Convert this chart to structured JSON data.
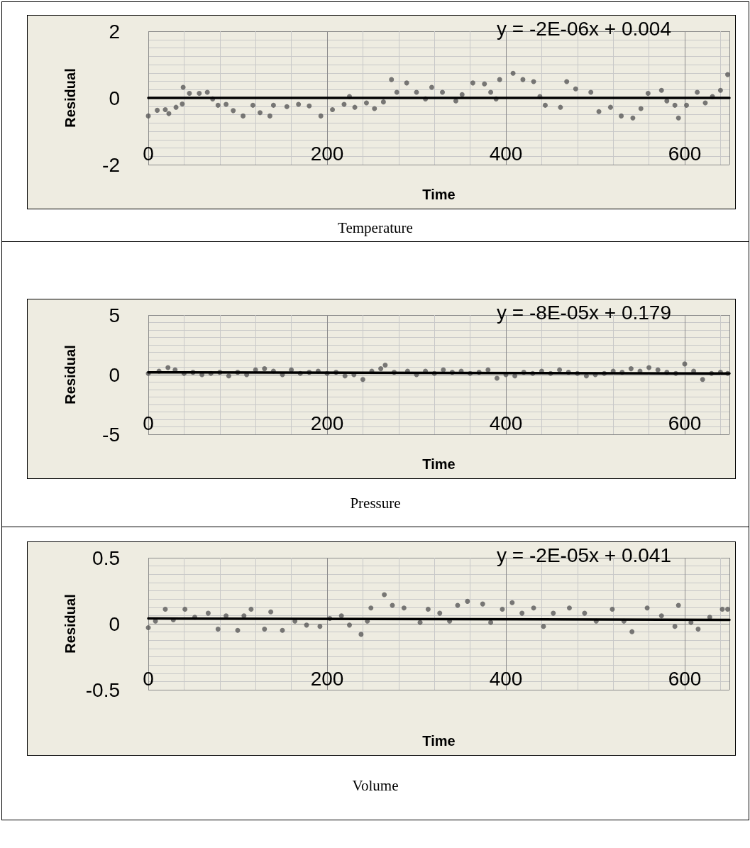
{
  "chart_data": [
    {
      "type": "scatter",
      "title": "Temperature",
      "xlabel": "Time",
      "ylabel": "Residual",
      "annotations": [
        "y = -2E-06x + 0.004"
      ],
      "xlim": [
        0,
        650
      ],
      "ylim": [
        -2,
        2
      ],
      "xticks": [
        0,
        200,
        400,
        600
      ],
      "yticks": [
        -2,
        0,
        2
      ],
      "grid": true,
      "marker": "circle",
      "series": [
        {
          "color": "#595959",
          "x": [
            0,
            10,
            19,
            23,
            31,
            38,
            39,
            46,
            57,
            66,
            72,
            78,
            87,
            95,
            106,
            117,
            125,
            136,
            140,
            155,
            168,
            180,
            193,
            206,
            219,
            225,
            231,
            244,
            253,
            263,
            272,
            278,
            289,
            300,
            310,
            317,
            329,
            344,
            351,
            363,
            376,
            383,
            389,
            393,
            408,
            419,
            431,
            438,
            444,
            461,
            468,
            478,
            495,
            504,
            517,
            529,
            542,
            551,
            559,
            574,
            580,
            589,
            593,
            602,
            614,
            623,
            631,
            640,
            648
          ],
          "values": [
            -0.54,
            -0.37,
            -0.35,
            -0.47,
            -0.28,
            -0.18,
            0.32,
            0.14,
            0.14,
            0.17,
            -0.03,
            -0.22,
            -0.19,
            -0.38,
            -0.54,
            -0.22,
            -0.44,
            -0.54,
            -0.22,
            -0.26,
            -0.19,
            -0.24,
            -0.54,
            -0.35,
            -0.19,
            0.04,
            -0.28,
            -0.15,
            -0.32,
            -0.12,
            0.55,
            0.17,
            0.45,
            0.17,
            -0.03,
            0.32,
            0.17,
            -0.09,
            0.1,
            0.45,
            0.42,
            0.17,
            -0.03,
            0.55,
            0.74,
            0.55,
            0.49,
            0.04,
            -0.22,
            -0.28,
            0.49,
            0.27,
            0.17,
            -0.41,
            -0.28,
            -0.54,
            -0.6,
            -0.32,
            0.14,
            0.23,
            -0.09,
            -0.22,
            -0.6,
            -0.22,
            0.17,
            -0.15,
            0.04,
            0.23,
            0.7
          ]
        },
        {
          "type": "line",
          "marker": "none",
          "color": "#000000",
          "x": [
            0,
            650
          ],
          "values": [
            0,
            0
          ]
        }
      ]
    },
    {
      "type": "scatter",
      "title": "Pressure",
      "xlabel": "Time",
      "ylabel": "Residual",
      "annotations": [
        "y = -8E-05x + 0.179"
      ],
      "xlim": [
        0,
        650
      ],
      "ylim": [
        -5,
        5
      ],
      "xticks": [
        0,
        200,
        400,
        600
      ],
      "yticks": [
        -5,
        0,
        5
      ],
      "grid": true,
      "marker": "circle",
      "series": [
        {
          "color": "#595959",
          "x": [
            0,
            12,
            22,
            30,
            40,
            50,
            60,
            70,
            80,
            90,
            100,
            110,
            120,
            130,
            140,
            150,
            160,
            170,
            180,
            190,
            200,
            210,
            220,
            230,
            240,
            250,
            260,
            265,
            275,
            290,
            300,
            310,
            320,
            330,
            340,
            350,
            360,
            370,
            380,
            390,
            400,
            410,
            420,
            430,
            440,
            450,
            460,
            470,
            480,
            490,
            500,
            510,
            520,
            530,
            540,
            550,
            560,
            570,
            580,
            590,
            600,
            610,
            620,
            630,
            640,
            648
          ],
          "values": [
            0.1,
            0.3,
            0.6,
            0.4,
            0.1,
            0.2,
            0.0,
            0.1,
            0.2,
            -0.1,
            0.2,
            0.0,
            0.4,
            0.5,
            0.3,
            0.0,
            0.4,
            0.1,
            0.2,
            0.3,
            0.1,
            0.2,
            -0.1,
            0.0,
            -0.4,
            0.3,
            0.5,
            0.8,
            0.2,
            0.3,
            0.0,
            0.3,
            0.1,
            0.4,
            0.2,
            0.3,
            0.1,
            0.2,
            0.4,
            -0.3,
            0.0,
            -0.1,
            0.2,
            0.1,
            0.3,
            0.1,
            0.4,
            0.2,
            0.1,
            -0.1,
            0.0,
            0.1,
            0.3,
            0.2,
            0.5,
            0.3,
            0.6,
            0.4,
            0.2,
            0.1,
            0.9,
            0.3,
            -0.4,
            0.1,
            0.2,
            0.1
          ]
        },
        {
          "type": "line",
          "marker": "none",
          "color": "#000000",
          "x": [
            0,
            650
          ],
          "values": [
            0.2,
            0.1
          ]
        }
      ]
    },
    {
      "type": "scatter",
      "title": "Volume",
      "xlabel": "Time",
      "ylabel": "Residual",
      "annotations": [
        "y = -2E-05x + 0.041"
      ],
      "xlim": [
        0,
        650
      ],
      "ylim": [
        -0.5,
        0.5
      ],
      "xticks": [
        0,
        200,
        400,
        600
      ],
      "yticks": [
        -0.5,
        0,
        0.5
      ],
      "grid": true,
      "marker": "circle",
      "series": [
        {
          "color": "#595959",
          "x": [
            0,
            8,
            19,
            28,
            41,
            52,
            67,
            78,
            87,
            100,
            107,
            115,
            130,
            137,
            150,
            164,
            177,
            192,
            203,
            216,
            225,
            238,
            245,
            249,
            264,
            273,
            286,
            304,
            313,
            326,
            337,
            346,
            357,
            374,
            383,
            396,
            407,
            418,
            431,
            442,
            453,
            471,
            488,
            501,
            519,
            532,
            541,
            558,
            574,
            589,
            593,
            607,
            615,
            628,
            642,
            648
          ],
          "values": [
            -0.03,
            0.02,
            0.11,
            0.03,
            0.11,
            0.05,
            0.08,
            -0.04,
            0.06,
            -0.05,
            0.06,
            0.11,
            -0.04,
            0.09,
            -0.05,
            0.02,
            -0.01,
            -0.02,
            0.04,
            0.06,
            -0.01,
            -0.08,
            0.02,
            0.12,
            0.22,
            0.14,
            0.12,
            0.01,
            0.11,
            0.08,
            0.02,
            0.14,
            0.17,
            0.15,
            0.01,
            0.11,
            0.16,
            0.08,
            0.12,
            -0.02,
            0.08,
            0.12,
            0.08,
            0.02,
            0.11,
            0.02,
            -0.06,
            0.12,
            0.06,
            -0.02,
            0.14,
            0.01,
            -0.04,
            0.05,
            0.11,
            0.11
          ]
        },
        {
          "type": "line",
          "marker": "none",
          "color": "#000000",
          "x": [
            0,
            650
          ],
          "values": [
            0.04,
            0.03
          ]
        }
      ]
    }
  ]
}
